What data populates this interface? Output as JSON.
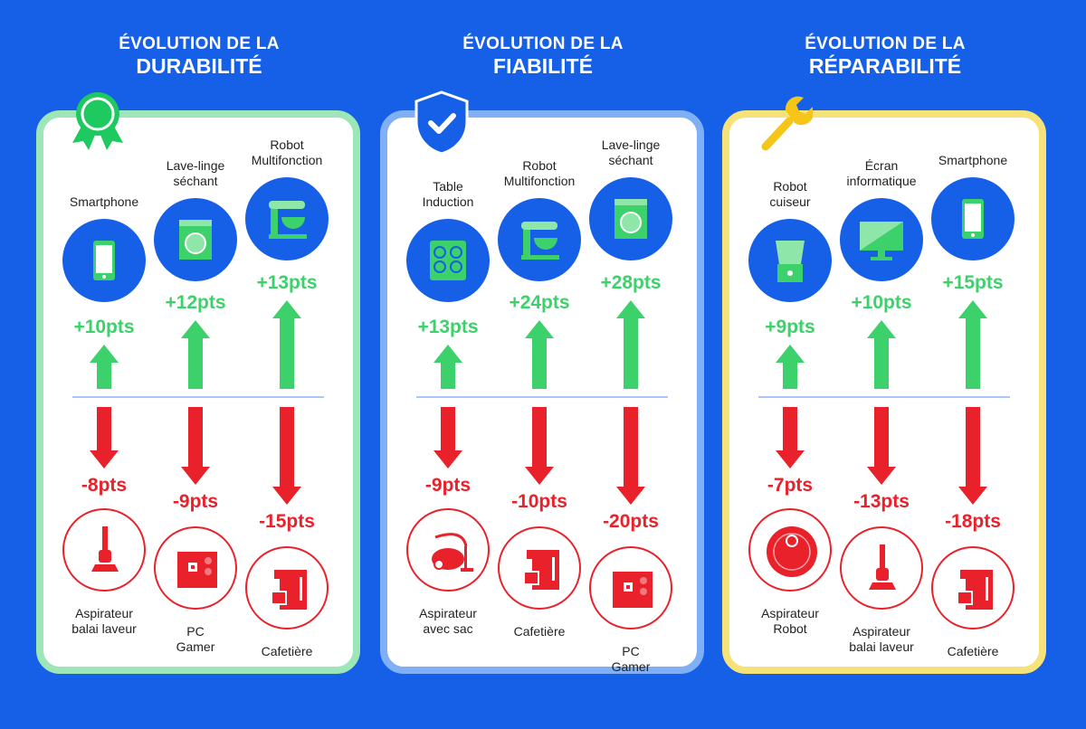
{
  "colors": {
    "background": "#1660e8",
    "up": "#3dd16b",
    "down": "#e8212a"
  },
  "panels": [
    {
      "title_line1": "ÉVOLUTION DE LA",
      "title_line2": "DURABILITÉ",
      "icon": "award-ribbon-icon",
      "border_color": "#9de6b8",
      "up": [
        {
          "label": "Smartphone",
          "pts": "+10pts",
          "icon": "smartphone-icon"
        },
        {
          "label": "Lave-linge\nséchant",
          "pts": "+12pts",
          "icon": "washing-machine-icon"
        },
        {
          "label": "Robot\nMultifonction",
          "pts": "+13pts",
          "icon": "stand-mixer-icon"
        }
      ],
      "down": [
        {
          "label": "Aspirateur\nbalai laveur",
          "pts": "-8pts",
          "icon": "stick-vacuum-icon"
        },
        {
          "label": "PC\nGamer",
          "pts": "-9pts",
          "icon": "pc-tower-icon"
        },
        {
          "label": "Cafetière",
          "pts": "-15pts",
          "icon": "coffee-maker-icon"
        }
      ]
    },
    {
      "title_line1": "ÉVOLUTION DE LA",
      "title_line2": "FIABILITÉ",
      "icon": "shield-check-icon",
      "border_color": "#7fb0f5",
      "up": [
        {
          "label": "Table\nInduction",
          "pts": "+13pts",
          "icon": "induction-hob-icon"
        },
        {
          "label": "Robot\nMultifonction",
          "pts": "+24pts",
          "icon": "stand-mixer-icon"
        },
        {
          "label": "Lave-linge\nséchant",
          "pts": "+28pts",
          "icon": "washing-machine-icon"
        }
      ],
      "down": [
        {
          "label": "Aspirateur\navec sac",
          "pts": "-9pts",
          "icon": "canister-vacuum-icon"
        },
        {
          "label": "Cafetière",
          "pts": "-10pts",
          "icon": "coffee-maker-icon"
        },
        {
          "label": "PC\nGamer",
          "pts": "-20pts",
          "icon": "pc-tower-icon"
        }
      ]
    },
    {
      "title_line1": "ÉVOLUTION DE LA",
      "title_line2": "RÉPARABILITÉ",
      "icon": "wrench-icon",
      "border_color": "#f7e27a",
      "up": [
        {
          "label": "Robot\ncuiseur",
          "pts": "+9pts",
          "icon": "food-processor-icon"
        },
        {
          "label": "Écran\ninformatique",
          "pts": "+10pts",
          "icon": "monitor-icon"
        },
        {
          "label": "Smartphone",
          "pts": "+15pts",
          "icon": "smartphone-icon"
        }
      ],
      "down": [
        {
          "label": "Aspirateur\nRobot",
          "pts": "-7pts",
          "icon": "robot-vacuum-icon"
        },
        {
          "label": "Aspirateur\nbalai laveur",
          "pts": "-13pts",
          "icon": "stick-vacuum-icon"
        },
        {
          "label": "Cafetière",
          "pts": "-18pts",
          "icon": "coffee-maker-icon"
        }
      ]
    }
  ]
}
